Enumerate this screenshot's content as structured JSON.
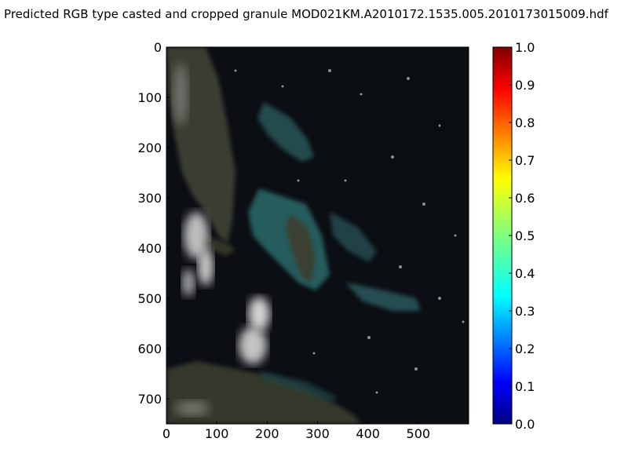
{
  "chart_data": {
    "type": "heatmap",
    "title": "Predicted RGB type casted and cropped granule MOD021KM.A2010172.1535.005.2010173015009.hdf",
    "xlabel": "",
    "ylabel": "",
    "xlim": [
      0,
      600
    ],
    "ylim": [
      750,
      0
    ],
    "x_ticks": [
      "0",
      "100",
      "200",
      "300",
      "400",
      "500"
    ],
    "y_ticks": [
      "0",
      "100",
      "200",
      "300",
      "400",
      "500",
      "600",
      "700"
    ],
    "colorbar": {
      "colormap": "jet",
      "range": [
        0.0,
        1.0
      ],
      "ticks": [
        "0.0",
        "0.1",
        "0.2",
        "0.3",
        "0.4",
        "0.5",
        "0.6",
        "0.7",
        "0.8",
        "0.9",
        "1.0"
      ]
    },
    "image_description_visible": false,
    "grid": false
  },
  "colors": {
    "ocean": "#0b0e13",
    "land": "#3d4136",
    "shallow_water": "#2f6b6a",
    "cloud": "#d9d9d9"
  }
}
